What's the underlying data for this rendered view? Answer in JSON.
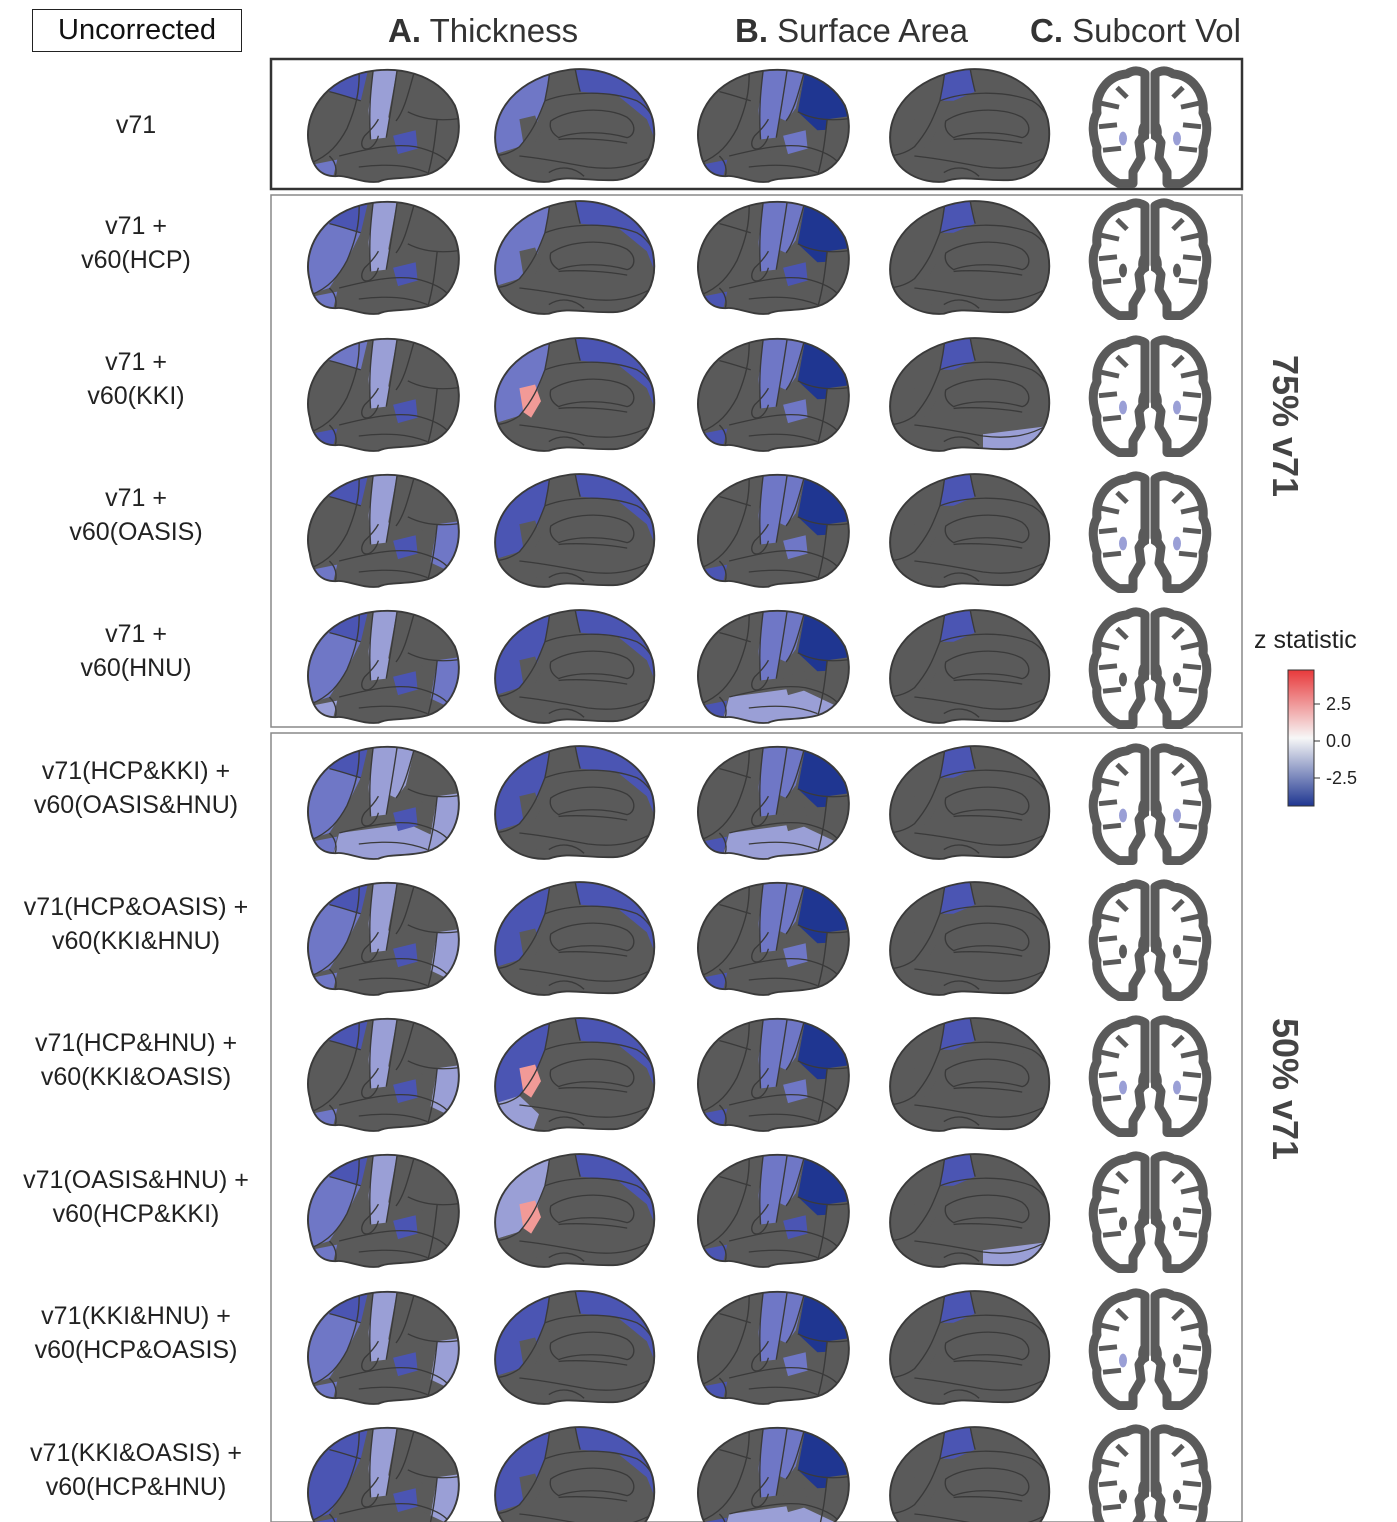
{
  "header": {
    "uncorrected_label": "Uncorrected",
    "columns": [
      {
        "letter": "A.",
        "name": "Thickness"
      },
      {
        "letter": "B.",
        "name": "Surface Area"
      },
      {
        "letter": "C.",
        "name": "Subcort Vol"
      }
    ]
  },
  "groups": [
    {
      "label": "75% v71"
    },
    {
      "label": "50% v71"
    }
  ],
  "rows": [
    {
      "line1": "v71",
      "line2": ""
    },
    {
      "line1": "v71 +",
      "line2": "v60(HCP)"
    },
    {
      "line1": "v71 +",
      "line2": "v60(KKI)"
    },
    {
      "line1": "v71 +",
      "line2": "v60(OASIS)"
    },
    {
      "line1": "v71 +",
      "line2": "v60(HNU)"
    },
    {
      "line1": "v71(HCP&KKI) +",
      "line2": "v60(OASIS&HNU)"
    },
    {
      "line1": "v71(HCP&OASIS) +",
      "line2": "v60(KKI&HNU)"
    },
    {
      "line1": "v71(HCP&HNU) +",
      "line2": "v60(KKI&OASIS)"
    },
    {
      "line1": "v71(OASIS&HNU) +",
      "line2": "v60(HCP&KKI)"
    },
    {
      "line1": "v71(KKI&HNU) +",
      "line2": "v60(HCP&OASIS)"
    },
    {
      "line1": "v71(KKI&OASIS) +",
      "line2": "v60(HCP&HNU)"
    }
  ],
  "legend": {
    "title": "z statistic",
    "ticks": [
      "2.5",
      "0.0",
      "-2.5"
    ],
    "colors": {
      "high": "#e8393b",
      "mid": "#f7f7f7",
      "low": "#1f3691"
    }
  },
  "colors": {
    "brain_gray": "#5a5a5a",
    "outline": "#3a3a3a",
    "light_blue": "#9a9fd6",
    "mid_blue": "#6f77c6",
    "dark_blue": "#4b55b3",
    "navy": "#1f3691",
    "pink": "#f29a97"
  }
}
